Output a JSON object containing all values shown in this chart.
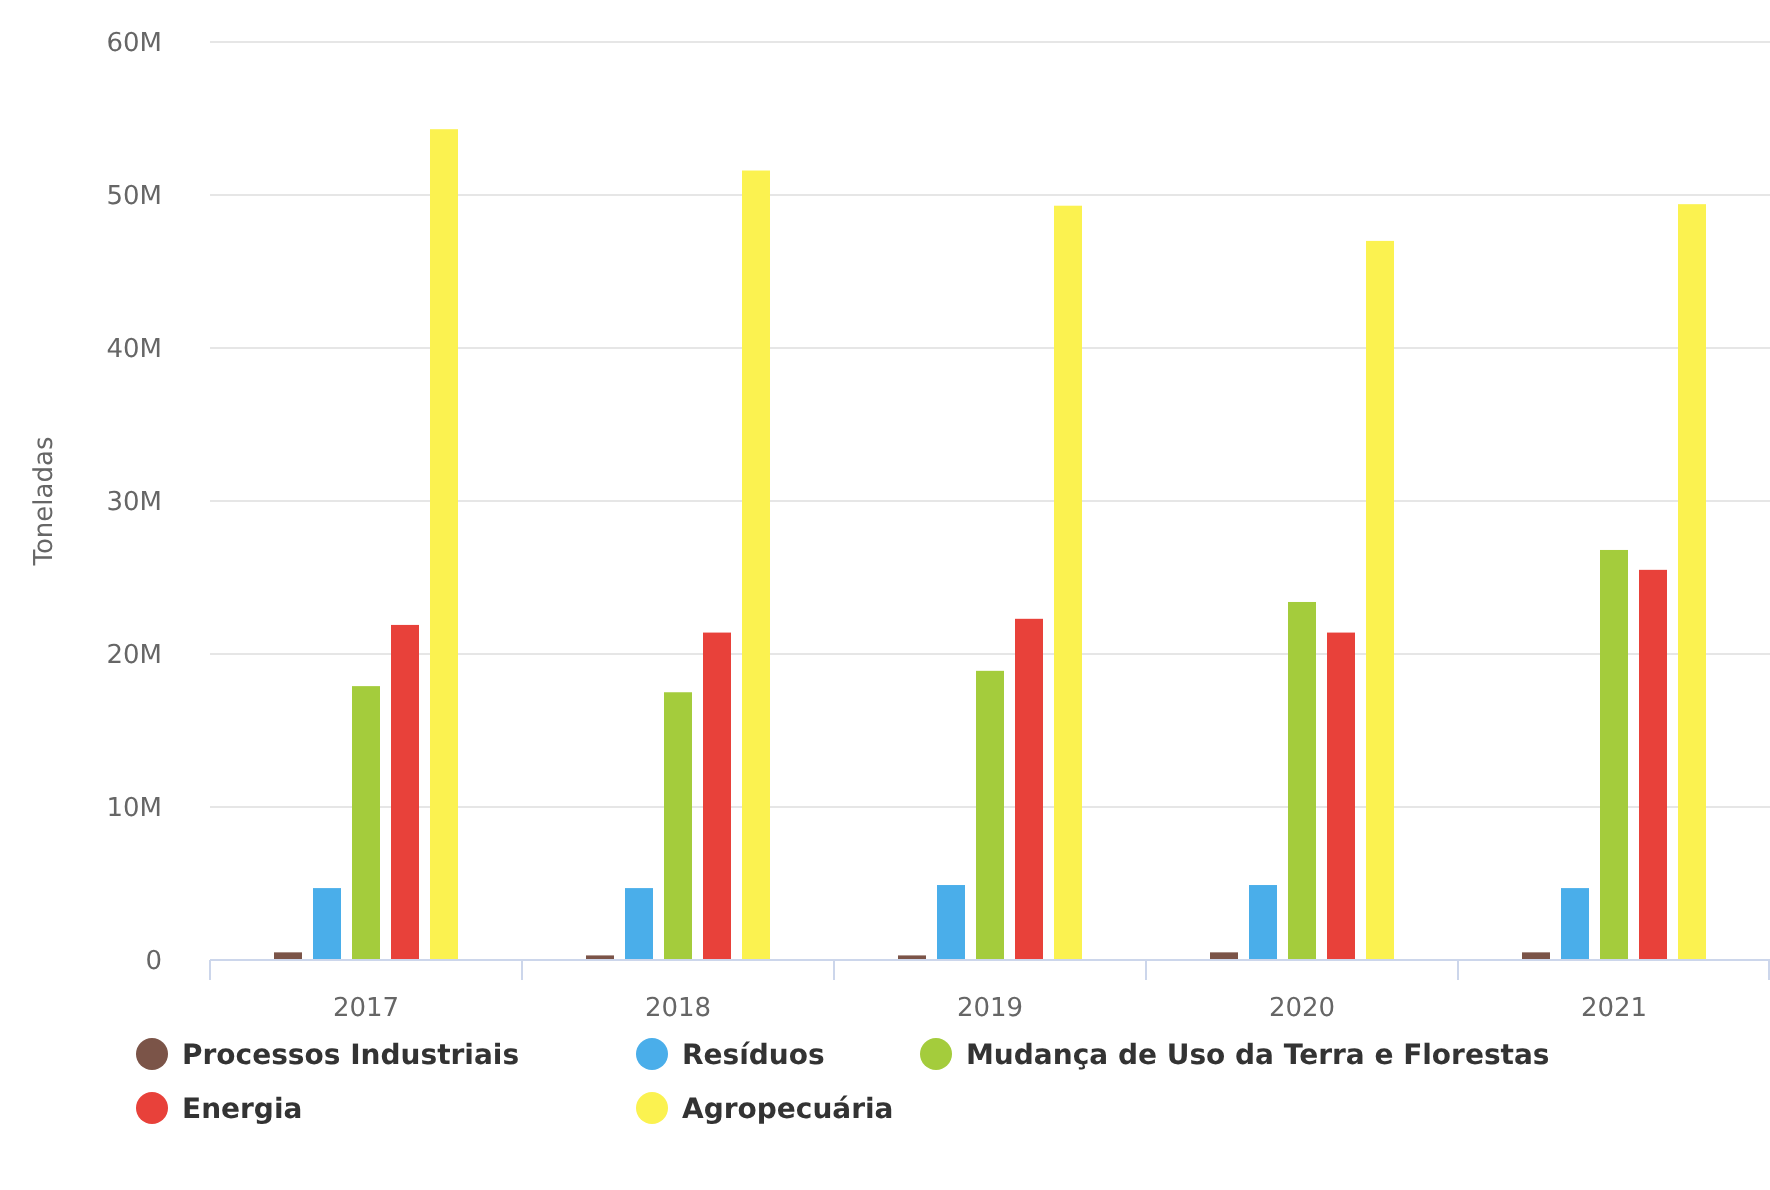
{
  "chart_data": {
    "type": "bar",
    "ylabel": "Toneladas",
    "categories": [
      "2017",
      "2018",
      "2019",
      "2020",
      "2021"
    ],
    "series": [
      {
        "name": "Processos Industriais",
        "color": "#7b5448",
        "values": [
          500000,
          300000,
          300000,
          500000,
          500000
        ]
      },
      {
        "name": "Resíduos",
        "color": "#4aaeea",
        "values": [
          4700000,
          4700000,
          4900000,
          4900000,
          4700000
        ]
      },
      {
        "name": "Mudança de Uso da Terra e Florestas",
        "color": "#a4cc3c",
        "values": [
          17900000,
          17500000,
          18900000,
          23400000,
          26800000
        ]
      },
      {
        "name": "Energia",
        "color": "#e8413a",
        "values": [
          21900000,
          21400000,
          22300000,
          21400000,
          25500000
        ]
      },
      {
        "name": "Agropecuária",
        "color": "#fbf250",
        "values": [
          54300000,
          51600000,
          49300000,
          47000000,
          49400000
        ]
      }
    ],
    "ylim": [
      0,
      60000000
    ],
    "yticks": [
      0,
      {
        "value": 10000000,
        "label": "10M"
      },
      {
        "value": 20000000,
        "label": "20M"
      },
      {
        "value": 30000000,
        "label": "30M"
      },
      {
        "value": 40000000,
        "label": "40M"
      },
      {
        "value": 50000000,
        "label": "50M"
      },
      {
        "value": 60000000,
        "label": "60M"
      }
    ],
    "grid": "y",
    "legend": "bottom"
  }
}
